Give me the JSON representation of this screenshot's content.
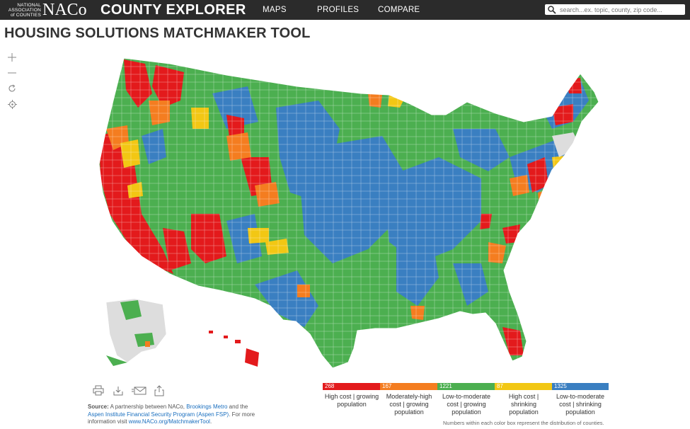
{
  "header": {
    "logo_small": [
      "NATIONAL",
      "ASSOCIATION",
      "of COUNTIES"
    ],
    "logo_big": "NACo",
    "brand": "COUNTY EXPLORER",
    "nav": [
      "MAPS",
      "PROFILES",
      "COMPARE"
    ],
    "search_placeholder": "search...ex. topic, county, zip code..."
  },
  "page_title": "HOUSING SOLUTIONS MATCHMAKER TOOL",
  "map_controls": [
    "zoom-in-icon",
    "zoom-out-icon",
    "reset-icon",
    "locate-icon"
  ],
  "toolbar_icons": [
    "print-icon",
    "download-icon",
    "email-icon",
    "share-icon"
  ],
  "source": {
    "label": "Source:",
    "text1": " A partnership between NACo, ",
    "link1": "Brookings Metro",
    "text2": " and the ",
    "link2": "Aspen Institute Financial Security Program (Aspen FSP)",
    "text3": ". For more information visit ",
    "link3": "www.NACo.org/MatchmakerTool",
    "text4": "."
  },
  "legend": {
    "items": [
      {
        "count": "268",
        "label": "High cost | growing population",
        "color": "#e31a1c"
      },
      {
        "count": "167",
        "label": "Moderately-high cost | growing population",
        "color": "#f47d20"
      },
      {
        "count": "1221",
        "label": "Low-to-moderate cost | growing population",
        "color": "#4caf50"
      },
      {
        "count": "87",
        "label": "High cost | shrinking population",
        "color": "#f2c714"
      },
      {
        "count": "1325",
        "label": "Low-to-moderate cost | shrinking population",
        "color": "#3a7fc1"
      }
    ],
    "note": "Numbers within each color box represent the distribution of counties."
  },
  "colors": {
    "topbar": "#2b2b2b",
    "no_data": "#dddddd"
  }
}
